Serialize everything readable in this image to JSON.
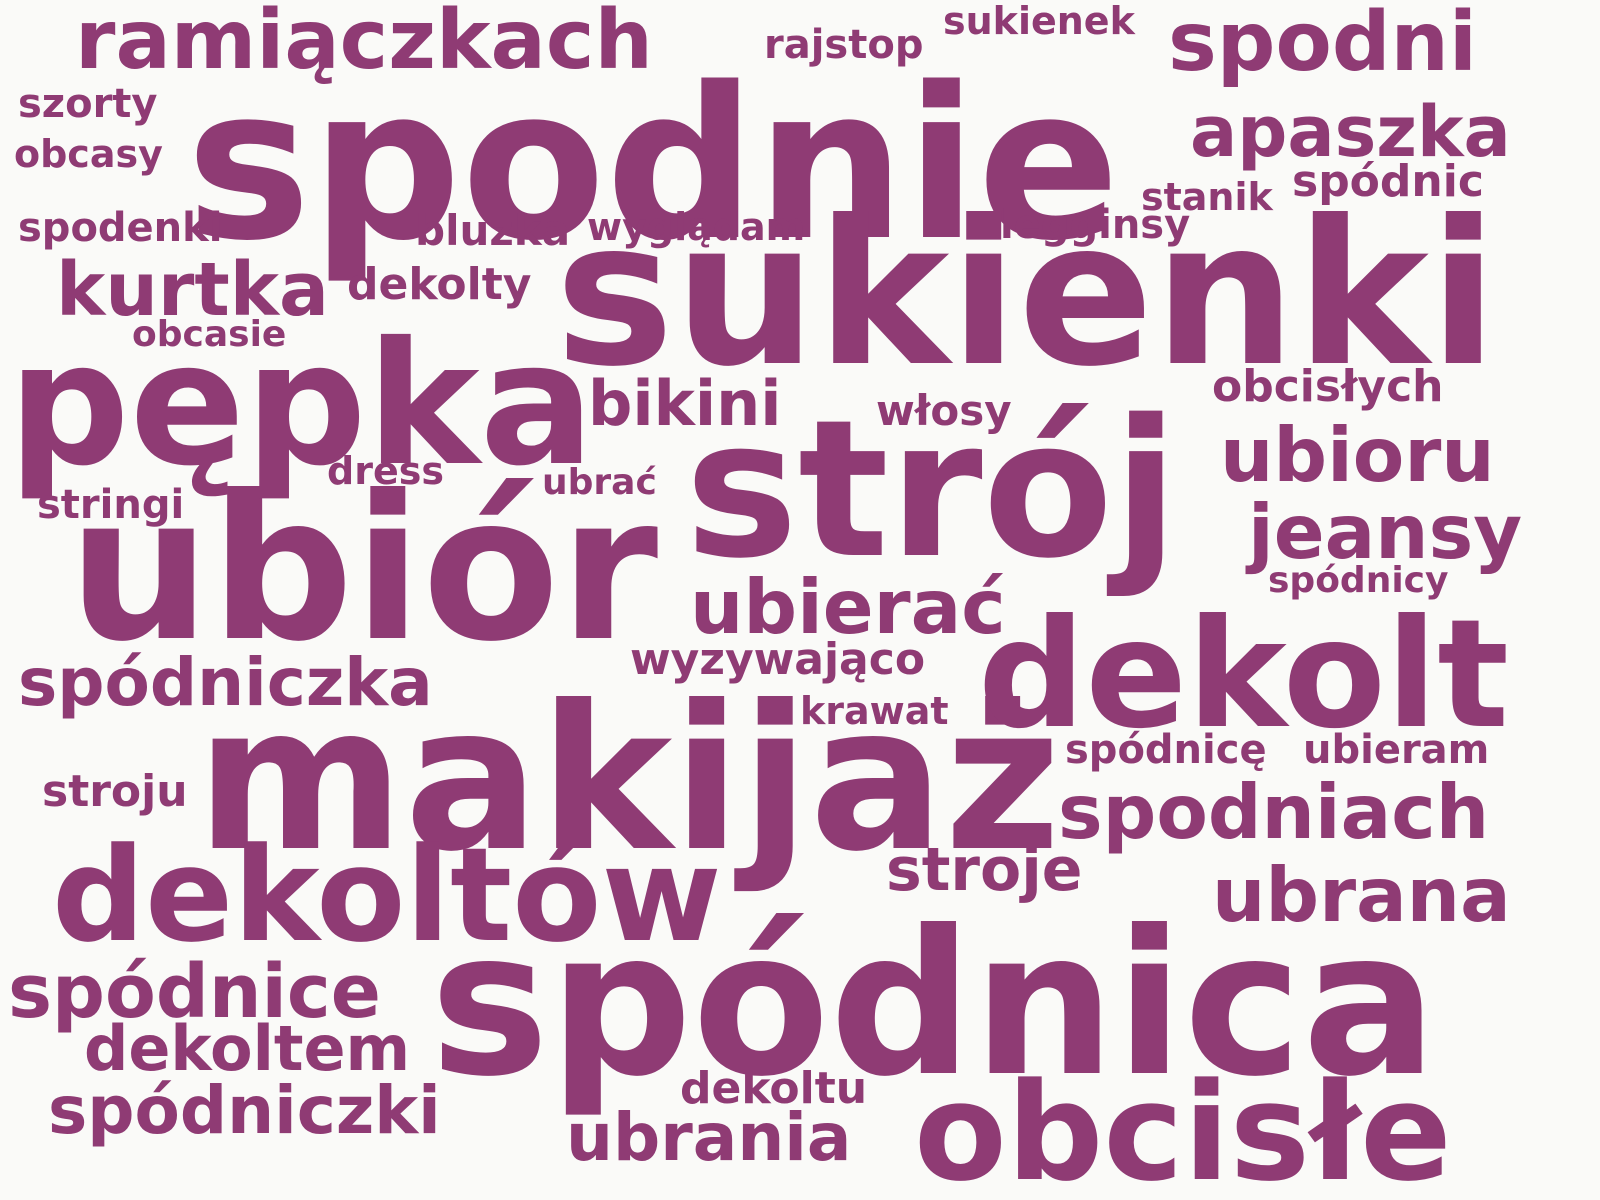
{
  "word_color": "#8f3b74",
  "background_color": "#fafaf8",
  "words": [
    "spodnie",
    "sukienki",
    "strój",
    "ubiór",
    "makijaż",
    "spódnica",
    "dekolt",
    "pępka",
    "dekoltów",
    "obcisłe",
    "ramiączkach",
    "spodni",
    "apaszka",
    "ubioru",
    "jeansy",
    "ubierać",
    "spodniach",
    "ubrana",
    "spódnice",
    "spódniczka",
    "spódniczki",
    "dekoltem",
    "ubrania",
    "kurtka",
    "bikini",
    "stroje",
    "obcisłych",
    "wyzywająco",
    "spódnicę",
    "ubieram",
    "rajstop",
    "sukienek",
    "szorty",
    "obcasy",
    "spodenki",
    "bluzka",
    "wyglądam",
    "legginsy",
    "stanik",
    "spódnic",
    "dekolty",
    "obcasie",
    "włosy",
    "dress",
    "ubrać",
    "stringi",
    "spódnicy",
    "krawat",
    "stroju",
    "dekoltu"
  ]
}
